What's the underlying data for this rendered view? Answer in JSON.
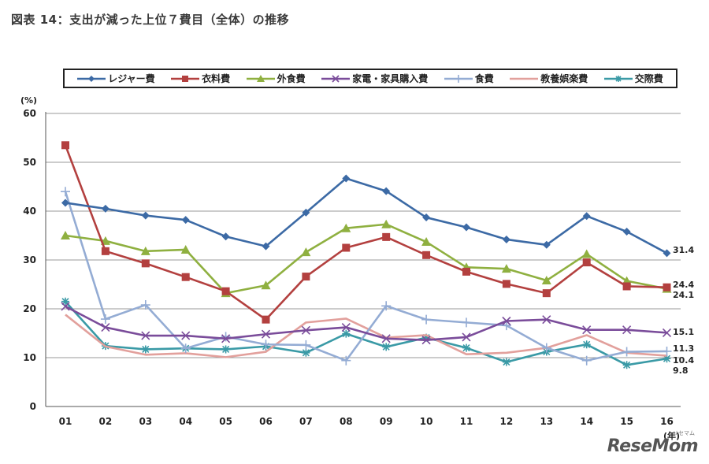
{
  "page_title": "図表 14：支出が減った上位７費目（全体）の推移",
  "watermark": "ReseMom",
  "watermark_sub": "リセマム",
  "chart_data": {
    "type": "line",
    "title": "図表 14：支出が減った上位７費目（全体）の推移",
    "ylabel": "(%)",
    "xlabel": "(年)",
    "ylim": [
      0,
      60
    ],
    "yticks": [
      0,
      10,
      20,
      30,
      40,
      50,
      60
    ],
    "grid": true,
    "legend": "top",
    "categories": [
      "01",
      "02",
      "03",
      "04",
      "05",
      "06",
      "07",
      "08",
      "09",
      "10",
      "11",
      "12",
      "13",
      "14",
      "15",
      "16"
    ],
    "series": [
      {
        "name": "レジャー費",
        "color": "#3c6aa5",
        "marker": "diamond",
        "values": [
          41.7,
          40.5,
          39.1,
          38.2,
          34.8,
          32.8,
          39.7,
          46.7,
          44.1,
          38.7,
          36.7,
          34.2,
          33.1,
          39.0,
          35.8,
          31.4
        ],
        "end_label": "31.4"
      },
      {
        "name": "衣料費",
        "color": "#b3403f",
        "marker": "square",
        "values": [
          53.5,
          31.8,
          29.3,
          26.5,
          23.6,
          17.8,
          26.6,
          32.5,
          34.7,
          31.0,
          27.6,
          25.1,
          23.2,
          29.5,
          24.6,
          24.4
        ],
        "end_label": "24.4"
      },
      {
        "name": "外食費",
        "color": "#8fb040",
        "marker": "triangle",
        "values": [
          35.0,
          33.9,
          31.8,
          32.1,
          23.2,
          24.8,
          31.6,
          36.5,
          37.3,
          33.7,
          28.5,
          28.2,
          25.8,
          31.2,
          25.7,
          24.1
        ],
        "end_label": "24.1"
      },
      {
        "name": "家電・家具購入費",
        "color": "#7a4c9a",
        "marker": "x",
        "values": [
          20.5,
          16.2,
          14.5,
          14.5,
          13.9,
          14.8,
          15.6,
          16.2,
          13.9,
          13.6,
          14.2,
          17.5,
          17.8,
          15.7,
          15.7,
          15.1
        ],
        "end_label": "15.1"
      },
      {
        "name": "食費",
        "color": "#94acd4",
        "marker": "plus",
        "values": [
          44.0,
          17.9,
          20.8,
          11.9,
          14.3,
          12.7,
          12.6,
          9.4,
          20.6,
          17.8,
          17.2,
          16.6,
          12.0,
          9.4,
          11.2,
          11.3
        ],
        "end_label": "11.3"
      },
      {
        "name": "教養娯楽費",
        "color": "#e2a09c",
        "marker": "none",
        "values": [
          18.8,
          12.3,
          10.6,
          10.9,
          10.1,
          11.2,
          17.2,
          18.0,
          14.1,
          14.6,
          10.7,
          11.0,
          12.0,
          14.6,
          11.0,
          10.4
        ],
        "end_label": "10.4"
      },
      {
        "name": "交際費",
        "color": "#3a9aa6",
        "marker": "star",
        "values": [
          21.5,
          12.4,
          11.7,
          11.9,
          11.7,
          12.3,
          11.0,
          14.9,
          12.2,
          14.1,
          12.0,
          9.1,
          11.2,
          12.7,
          8.5,
          9.8
        ],
        "end_label": "9.8"
      }
    ]
  }
}
